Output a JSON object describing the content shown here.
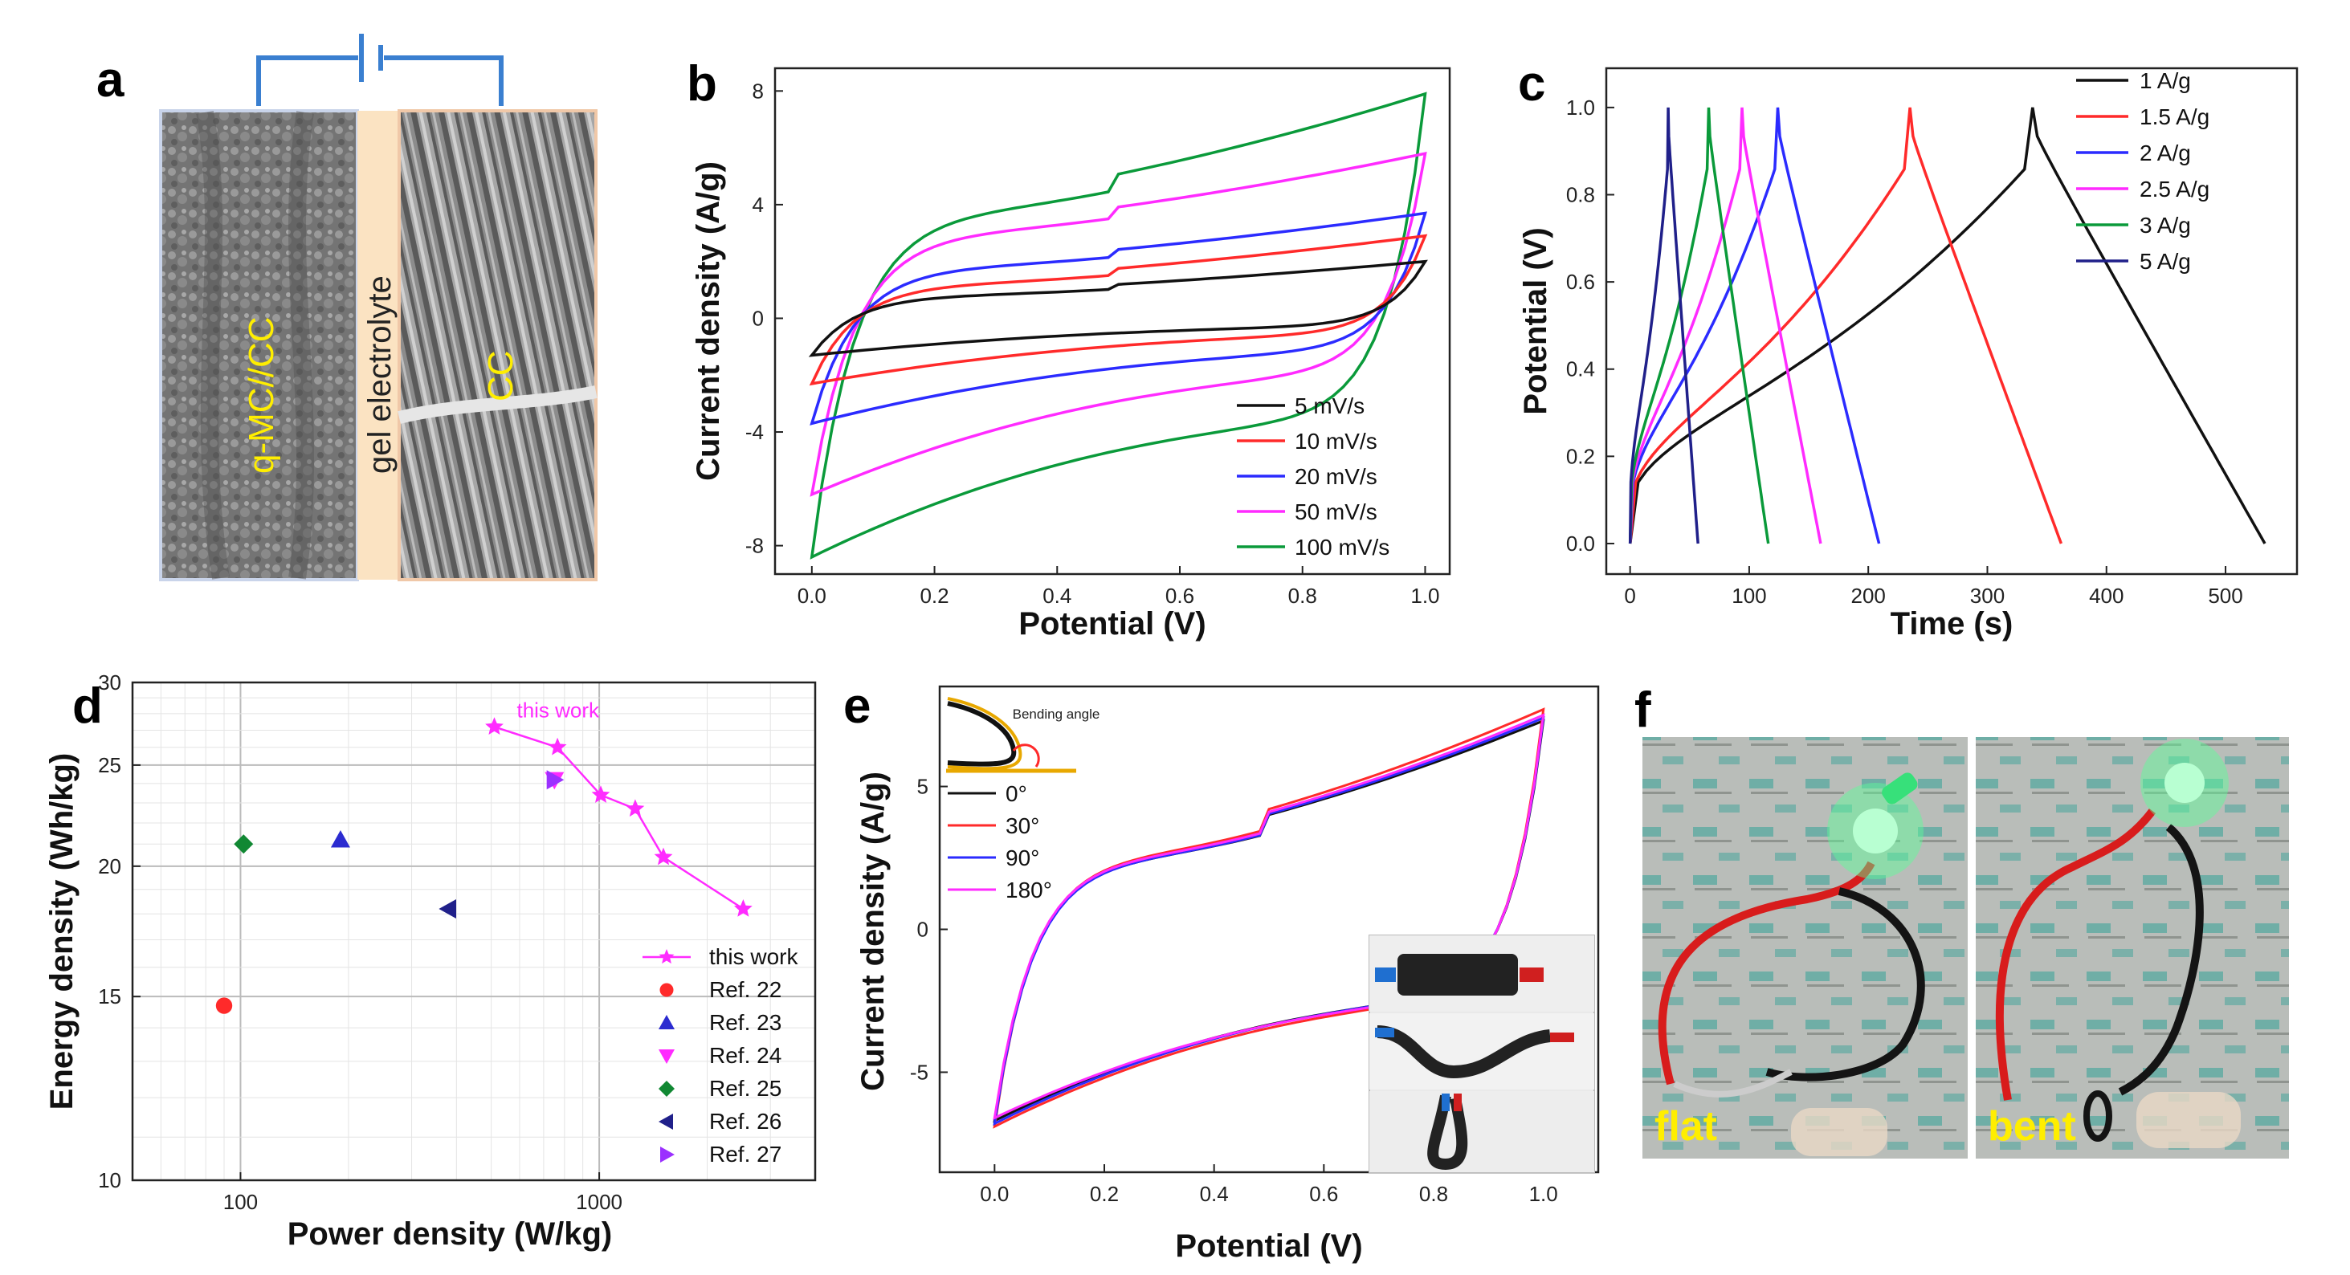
{
  "colors": {
    "black": "#111111",
    "red": "#ff2a2a",
    "blue": "#2b2bff",
    "magenta": "#ff2bff",
    "green": "#0a9a3a",
    "navy": "#20208a",
    "ref23": "#2b2bd0",
    "ref25": "#118833",
    "ref27": "#9b30ff",
    "label_yellow": "#ffee00",
    "circuit_blue": "#3a7fd0"
  },
  "panel_labels": [
    "a",
    "b",
    "c",
    "d",
    "e",
    "f"
  ],
  "panel_a": {
    "electrode_label": "q-MC//CC",
    "electrolyte_label": "gel electrolyte",
    "cc_label": "CC"
  },
  "chart_data": [
    {
      "id": "b",
      "type": "line",
      "xlabel": "Potential (V)",
      "ylabel": "Current density (A/g)",
      "xlim": [
        -0.06,
        1.04
      ],
      "ylim": [
        -9,
        8.8
      ],
      "xticks": [
        0.0,
        0.2,
        0.4,
        0.6,
        0.8,
        1.0
      ],
      "xtick_labels": [
        "0.0",
        "0.2",
        "0.4",
        "0.6",
        "0.8",
        "1.0"
      ],
      "yticks": [
        -8,
        -4,
        0,
        4,
        8
      ],
      "ytick_labels": [
        "-8",
        "-4",
        "0",
        "4",
        "8"
      ],
      "series": [
        {
          "name": "5 mV/s",
          "color": "#111111",
          "cv": {
            "v0": -1.3,
            "top_mid": 0.8,
            "v1": 2.0,
            "bot_mid": -0.3
          }
        },
        {
          "name": "10 mV/s",
          "color": "#ff2a2a",
          "cv": {
            "v0": -2.3,
            "top_mid": 1.2,
            "v1": 2.9,
            "bot_mid": -0.6
          }
        },
        {
          "name": "20 mV/s",
          "color": "#2b2bff",
          "cv": {
            "v0": -3.7,
            "top_mid": 1.8,
            "v1": 3.7,
            "bot_mid": -1.2
          }
        },
        {
          "name": "50 mV/s",
          "color": "#ff2bff",
          "cv": {
            "v0": -6.2,
            "top_mid": 3.0,
            "v1": 5.8,
            "bot_mid": -2.0
          }
        },
        {
          "name": "100 mV/s",
          "color": "#0a9a3a",
          "cv": {
            "v0": -8.4,
            "top_mid": 3.7,
            "v1": 7.9,
            "bot_mid": -3.6
          }
        }
      ]
    },
    {
      "id": "c",
      "type": "line",
      "xlabel": "Time (s)",
      "ylabel": "Potential (V)",
      "xlim": [
        -20,
        560
      ],
      "ylim": [
        -0.07,
        1.09
      ],
      "xticks": [
        0,
        100,
        200,
        300,
        400,
        500
      ],
      "xtick_labels": [
        "0",
        "100",
        "200",
        "300",
        "400",
        "500"
      ],
      "yticks": [
        0.0,
        0.2,
        0.4,
        0.6,
        0.8,
        1.0
      ],
      "ytick_labels": [
        "0.0",
        "0.2",
        "0.4",
        "0.6",
        "0.8",
        "1.0"
      ],
      "series": [
        {
          "name": "1 A/g",
          "color": "#111111",
          "t_charge": 338,
          "t_end": 533
        },
        {
          "name": "1.5 A/g",
          "color": "#ff2a2a",
          "t_charge": 235,
          "t_end": 362
        },
        {
          "name": "2 A/g",
          "color": "#2b2bff",
          "t_charge": 124,
          "t_end": 209
        },
        {
          "name": "2.5 A/g",
          "color": "#ff2bff",
          "t_charge": 94,
          "t_end": 160
        },
        {
          "name": "3 A/g",
          "color": "#0a9a3a",
          "t_charge": 66,
          "t_end": 116
        },
        {
          "name": "5 A/g",
          "color": "#20208a",
          "t_charge": 32,
          "t_end": 57
        }
      ]
    },
    {
      "id": "d",
      "type": "scatter",
      "xlabel": "Power density (W/kg)",
      "ylabel": "Energy density (Wh/kg)",
      "xscale": "log",
      "yscale": "log",
      "xlim": [
        50,
        4000
      ],
      "ylim": [
        10,
        30
      ],
      "xticks": [
        100,
        1000
      ],
      "xtick_labels": [
        "100",
        "1000"
      ],
      "yticks": [
        10,
        15,
        20,
        25,
        30
      ],
      "ytick_labels": [
        "10",
        "15",
        "20",
        "25",
        "30"
      ],
      "annotation": "this work",
      "series": [
        {
          "name": "this work",
          "color": "#ff2bff",
          "marker": "star",
          "line": true,
          "x": [
            510,
            765,
            1010,
            1260,
            1510,
            2520
          ],
          "y": [
            27.2,
            26.0,
            23.4,
            22.7,
            20.4,
            18.2
          ]
        },
        {
          "name": "Ref. 22",
          "color": "#ff2a2a",
          "marker": "circle",
          "x": [
            90
          ],
          "y": [
            14.7
          ]
        },
        {
          "name": "Ref. 23",
          "color": "#2b2bd0",
          "marker": "triangle-up",
          "x": [
            190
          ],
          "y": [
            21.2
          ]
        },
        {
          "name": "Ref. 24",
          "color": "#ff2bff",
          "marker": "triangle-down",
          "x": [
            750
          ],
          "y": [
            24.2
          ]
        },
        {
          "name": "Ref. 25",
          "color": "#118833",
          "marker": "diamond",
          "x": [
            102
          ],
          "y": [
            21.0
          ]
        },
        {
          "name": "Ref. 26",
          "color": "#20208a",
          "marker": "triangle-left",
          "x": [
            380
          ],
          "y": [
            18.2
          ]
        },
        {
          "name": "Ref. 27",
          "color": "#9b30ff",
          "marker": "triangle-right",
          "x": [
            750
          ],
          "y": [
            24.2
          ]
        }
      ]
    },
    {
      "id": "e",
      "type": "line",
      "xlabel": "Potential (V)",
      "ylabel": "Current density (A/g)",
      "xlim": [
        -0.1,
        1.1
      ],
      "ylim": [
        -8.5,
        8.5
      ],
      "xticks": [
        0.0,
        0.2,
        0.4,
        0.6,
        0.8,
        1.0
      ],
      "xtick_labels": [
        "0.0",
        "0.2",
        "0.4",
        "0.6",
        "0.8",
        "1.0"
      ],
      "yticks": [
        -5,
        0,
        5
      ],
      "ytick_labels": [
        "-5",
        "0",
        "5"
      ],
      "inset_label": "Bending angle",
      "series": [
        {
          "name": "0°",
          "color": "#111111",
          "cv": {
            "v0": -6.7,
            "top_mid": 2.4,
            "v1": 7.3,
            "bot_mid": -2.4
          }
        },
        {
          "name": "30°",
          "color": "#ff2a2a",
          "cv": {
            "v0": -6.9,
            "top_mid": 2.5,
            "v1": 7.7,
            "bot_mid": -2.5
          }
        },
        {
          "name": "90°",
          "color": "#2b2bff",
          "cv": {
            "v0": -6.8,
            "top_mid": 2.4,
            "v1": 7.4,
            "bot_mid": -2.4
          }
        },
        {
          "name": "180°",
          "color": "#ff2bff",
          "cv": {
            "v0": -6.6,
            "top_mid": 2.45,
            "v1": 7.5,
            "bot_mid": -2.45
          }
        }
      ]
    }
  ],
  "panel_f": {
    "flat_label": "flat",
    "bent_label": "bent"
  }
}
